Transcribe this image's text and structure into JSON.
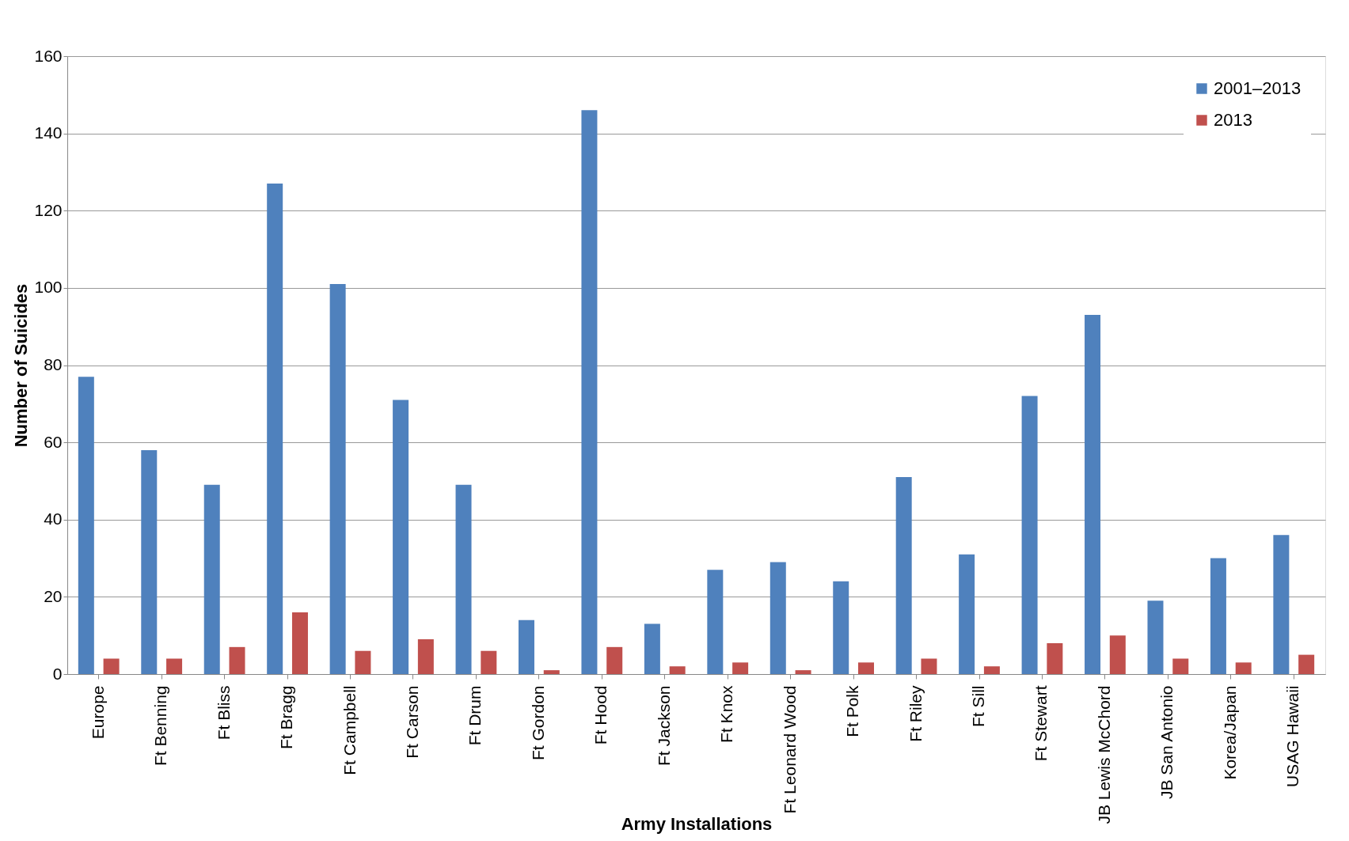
{
  "chart_data": {
    "type": "bar",
    "xlabel": "Army Installations",
    "ylabel": "Number of Suicides",
    "categories": [
      "Europe",
      "Ft Benning",
      "Ft Bliss",
      "Ft Bragg",
      "Ft Campbell",
      "Ft Carson",
      "Ft Drum",
      "Ft Gordon",
      "Ft Hood",
      "Ft Jackson",
      "Ft Knox",
      "Ft Leonard Wood",
      "Ft Polk",
      "Ft Riley",
      "Ft Sill",
      "Ft Stewart",
      "JB Lewis McChord",
      "JB San Antonio",
      "Korea/Japan",
      "USAG Hawaii"
    ],
    "series": [
      {
        "name": "2001–2013",
        "color": "#4f81bd",
        "values": [
          77,
          58,
          49,
          127,
          101,
          71,
          49,
          14,
          146,
          13,
          27,
          29,
          24,
          51,
          31,
          72,
          93,
          19,
          30,
          36
        ]
      },
      {
        "name": "2013",
        "color": "#c0504d",
        "values": [
          4,
          4,
          7,
          16,
          6,
          9,
          6,
          1,
          7,
          2,
          3,
          1,
          3,
          4,
          2,
          8,
          10,
          4,
          3,
          5
        ]
      }
    ],
    "ylim": [
      0,
      160
    ],
    "yticks": [
      0,
      20,
      40,
      60,
      80,
      100,
      120,
      140,
      160
    ],
    "grid": "y",
    "legend": "top right"
  }
}
